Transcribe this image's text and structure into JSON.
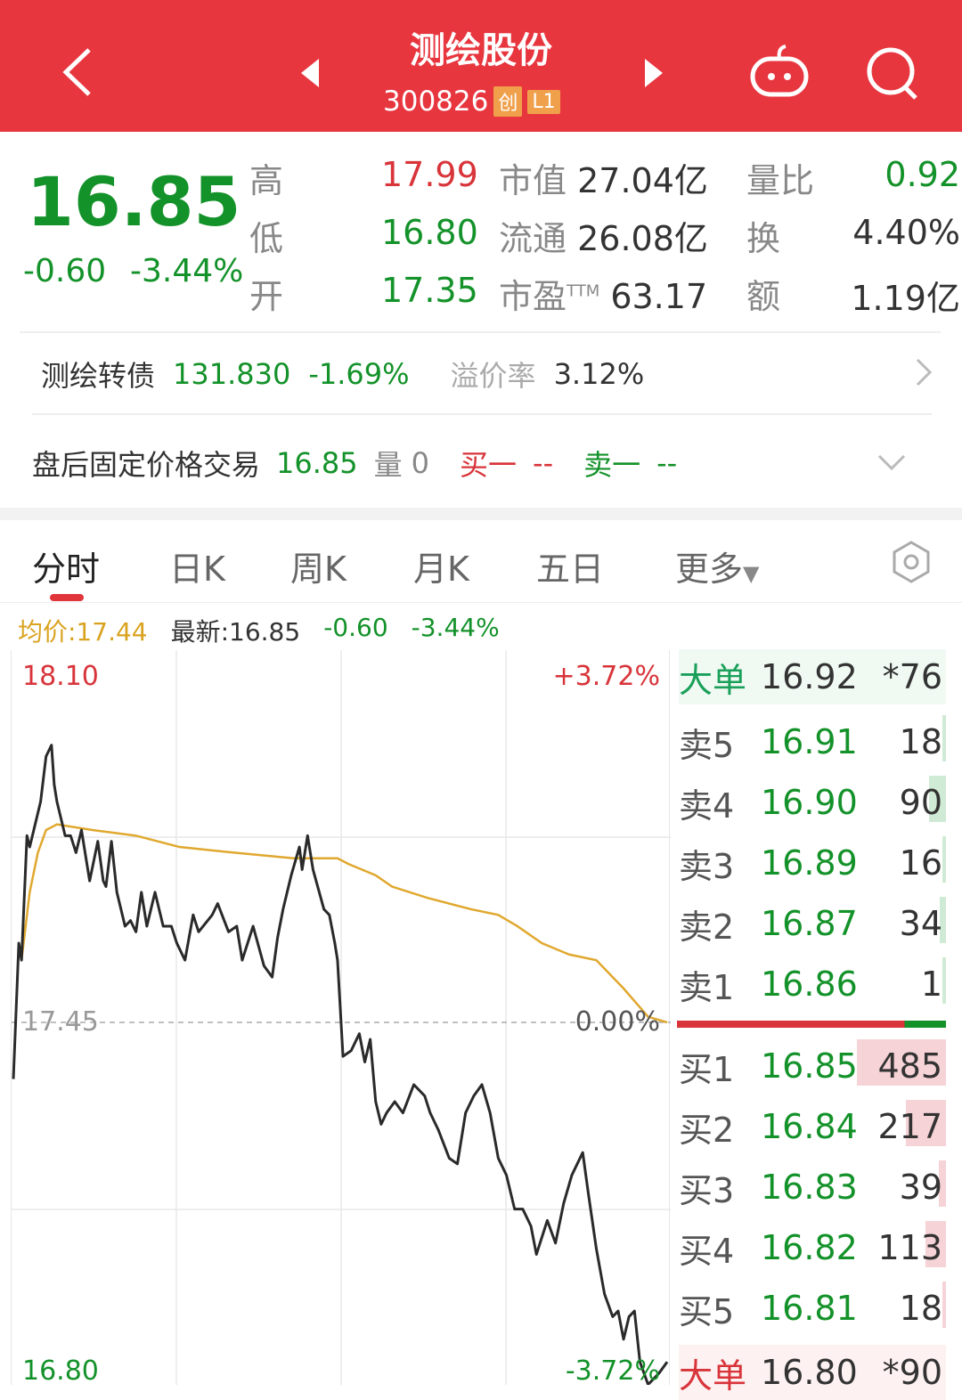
{
  "header": {
    "title": "测绘股份",
    "code": "300826",
    "tags": [
      "创",
      "L1"
    ],
    "icons": [
      "back-icon",
      "prev-stock-icon",
      "next-stock-icon",
      "robot-assistant-icon",
      "search-icon"
    ]
  },
  "quote": {
    "price": "16.85",
    "change": "-0.60",
    "change_pct": "-3.44%",
    "high_label": "高",
    "high": "17.99",
    "low_label": "低",
    "low": "16.80",
    "open_label": "开",
    "open": "17.35",
    "mcap_label": "市值",
    "mcap": "27.04亿",
    "float_label": "流通",
    "float": "26.08亿",
    "pe_label": "市盈",
    "pe_sup": "TTM",
    "pe": "63.17",
    "vr_label": "量比",
    "vr": "0.92",
    "turn_label": "换",
    "turn": "4.40%",
    "amt_label": "额",
    "amt": "1.19亿"
  },
  "bond": {
    "name": "测绘转债",
    "price": "131.830",
    "pct": "-1.69%",
    "premium_label": "溢价率",
    "premium": "3.12%"
  },
  "after_hours": {
    "label": "盘后固定价格交易",
    "price": "16.85",
    "vol_label": "量",
    "vol": "0",
    "buy_label": "买一",
    "buy": "--",
    "sell_label": "卖一",
    "sell": "--"
  },
  "tabs": [
    {
      "label": "分时",
      "active": true
    },
    {
      "label": "日K"
    },
    {
      "label": "周K"
    },
    {
      "label": "月K"
    },
    {
      "label": "五日"
    },
    {
      "label": "更多"
    }
  ],
  "info": {
    "avg": "均价:17.44",
    "latest": "最新:16.85",
    "chg": "-0.60",
    "pct": "-3.44%"
  },
  "colors": {
    "up": "#d8343a",
    "down": "#14922a",
    "header": "#e8363f",
    "avg_line": "#e0a82e"
  },
  "chart_data": {
    "type": "line",
    "ylim": [
      16.8,
      18.1
    ],
    "prev_close": 17.45,
    "y_labels": {
      "top": "18.10",
      "mid": "17.45",
      "bottom": "16.80",
      "top_pct": "+3.72%",
      "mid_pct": "0.00%",
      "bottom_pct": "-3.72%"
    },
    "price": [
      [
        "09:30",
        17.35
      ],
      [
        "09:32",
        17.59
      ],
      [
        "09:33",
        17.56
      ],
      [
        "09:35",
        17.78
      ],
      [
        "09:36",
        17.76
      ],
      [
        "09:38",
        17.8
      ],
      [
        "09:40",
        17.84
      ],
      [
        "09:42",
        17.92
      ],
      [
        "09:44",
        17.94
      ],
      [
        "09:45",
        17.87
      ],
      [
        "09:46",
        17.84
      ],
      [
        "09:49",
        17.78
      ],
      [
        "09:51",
        17.78
      ],
      [
        "09:53",
        17.75
      ],
      [
        "09:55",
        17.79
      ],
      [
        "09:58",
        17.7
      ],
      [
        "10:01",
        17.77
      ],
      [
        "10:03",
        17.7
      ],
      [
        "10:04",
        17.69
      ],
      [
        "10:06",
        17.77
      ],
      [
        "10:08",
        17.68
      ],
      [
        "10:11",
        17.62
      ],
      [
        "10:13",
        17.63
      ],
      [
        "10:15",
        17.61
      ],
      [
        "10:17",
        17.68
      ],
      [
        "10:19",
        17.62
      ],
      [
        "10:22",
        17.68
      ],
      [
        "10:25",
        17.62
      ],
      [
        "10:28",
        17.62
      ],
      [
        "10:30",
        17.59
      ],
      [
        "10:33",
        17.56
      ],
      [
        "10:36",
        17.64
      ],
      [
        "10:38",
        17.61
      ],
      [
        "10:43",
        17.64
      ],
      [
        "10:45",
        17.66
      ],
      [
        "10:49",
        17.61
      ],
      [
        "10:52",
        17.62
      ],
      [
        "10:54",
        17.56
      ],
      [
        "10:58",
        17.62
      ],
      [
        "11:02",
        17.55
      ],
      [
        "11:05",
        17.53
      ],
      [
        "11:07",
        17.6
      ],
      [
        "11:09",
        17.65
      ],
      [
        "11:12",
        17.71
      ],
      [
        "11:15",
        17.76
      ],
      [
        "11:16",
        17.72
      ],
      [
        "11:18",
        17.78
      ],
      [
        "11:20",
        17.72
      ],
      [
        "11:24",
        17.65
      ],
      [
        "11:26",
        17.64
      ],
      [
        "11:28",
        17.59
      ],
      [
        "11:29",
        17.56
      ],
      [
        "13:01",
        17.39
      ],
      [
        "13:04",
        17.4
      ],
      [
        "13:07",
        17.43
      ],
      [
        "13:09",
        17.38
      ],
      [
        "13:11",
        17.42
      ],
      [
        "13:13",
        17.31
      ],
      [
        "13:15",
        17.27
      ],
      [
        "13:17",
        17.29
      ],
      [
        "13:20",
        17.31
      ],
      [
        "13:23",
        17.29
      ],
      [
        "13:27",
        17.34
      ],
      [
        "13:31",
        17.32
      ],
      [
        "13:33",
        17.29
      ],
      [
        "13:36",
        17.26
      ],
      [
        "13:40",
        17.21
      ],
      [
        "13:43",
        17.2
      ],
      [
        "13:46",
        17.29
      ],
      [
        "13:49",
        17.32
      ],
      [
        "13:52",
        17.34
      ],
      [
        "13:55",
        17.29
      ],
      [
        "13:58",
        17.21
      ],
      [
        "14:01",
        17.18
      ],
      [
        "14:04",
        17.12
      ],
      [
        "14:07",
        17.12
      ],
      [
        "14:10",
        17.09
      ],
      [
        "14:12",
        17.04
      ],
      [
        "14:16",
        17.1
      ],
      [
        "14:19",
        17.06
      ],
      [
        "14:22",
        17.13
      ],
      [
        "14:25",
        17.18
      ],
      [
        "14:29",
        17.22
      ],
      [
        "14:31",
        17.15
      ],
      [
        "14:34",
        17.05
      ],
      [
        "14:37",
        16.97
      ],
      [
        "14:40",
        16.93
      ],
      [
        "14:42",
        16.94
      ],
      [
        "14:44",
        16.89
      ],
      [
        "14:46",
        16.93
      ],
      [
        "14:48",
        16.94
      ],
      [
        "14:50",
        16.85
      ],
      [
        "14:53",
        16.81
      ],
      [
        "14:57",
        16.83
      ],
      [
        "15:00",
        16.85
      ]
    ],
    "avg": [
      [
        "09:33",
        17.56
      ],
      [
        "09:36",
        17.68
      ],
      [
        "09:39",
        17.75
      ],
      [
        "09:42",
        17.79
      ],
      [
        "09:46",
        17.8
      ],
      [
        "09:59",
        17.79
      ],
      [
        "10:15",
        17.78
      ],
      [
        "10:31",
        17.76
      ],
      [
        "10:51",
        17.75
      ],
      [
        "11:13",
        17.74
      ],
      [
        "11:29",
        17.74
      ],
      [
        "13:03",
        17.73
      ],
      [
        "13:13",
        17.71
      ],
      [
        "13:19",
        17.69
      ],
      [
        "13:32",
        17.67
      ],
      [
        "13:48",
        17.65
      ],
      [
        "13:58",
        17.64
      ],
      [
        "14:05",
        17.62
      ],
      [
        "14:14",
        17.59
      ],
      [
        "14:24",
        17.57
      ],
      [
        "14:34",
        17.56
      ],
      [
        "14:44",
        17.51
      ],
      [
        "14:53",
        17.46
      ],
      [
        "15:00",
        17.45
      ]
    ]
  },
  "orderbook": {
    "big_top": {
      "label": "大单",
      "price": "16.92",
      "qty": "*76"
    },
    "asks": [
      {
        "label": "卖5",
        "price": "16.91",
        "qty": 18
      },
      {
        "label": "卖4",
        "price": "16.90",
        "qty": 90
      },
      {
        "label": "卖3",
        "price": "16.89",
        "qty": 16
      },
      {
        "label": "卖2",
        "price": "16.87",
        "qty": 34
      },
      {
        "label": "卖1",
        "price": "16.86",
        "qty": 1
      }
    ],
    "bids": [
      {
        "label": "买1",
        "price": "16.85",
        "qty": 485
      },
      {
        "label": "买2",
        "price": "16.84",
        "qty": 217
      },
      {
        "label": "买3",
        "price": "16.83",
        "qty": 39
      },
      {
        "label": "买4",
        "price": "16.82",
        "qty": 113
      },
      {
        "label": "买5",
        "price": "16.81",
        "qty": 18
      }
    ],
    "big_bottom": {
      "label": "大单",
      "price": "16.80",
      "qty": "*90"
    }
  }
}
